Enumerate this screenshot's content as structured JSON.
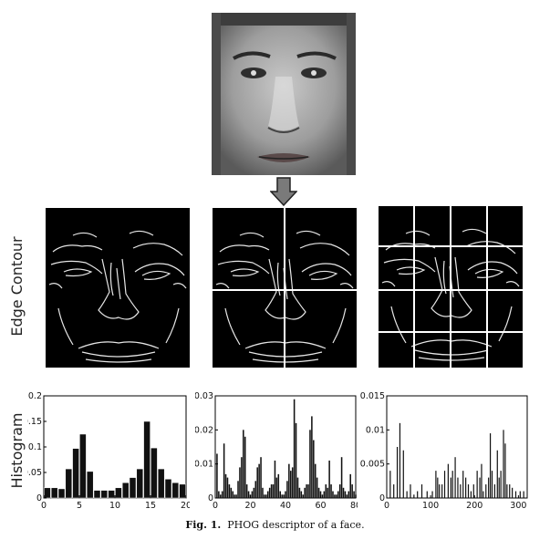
{
  "row_labels": {
    "edge": "Edge Contour",
    "histogram": "Histogram"
  },
  "caption": {
    "label": "Fig. 1.",
    "text": "PHOG descriptor of a face."
  },
  "chart_data": [
    {
      "type": "bar",
      "title": "",
      "xlabel": "",
      "ylabel": "Histogram",
      "xlim": [
        0,
        20
      ],
      "ylim": [
        0,
        0.2
      ],
      "xticks": [
        0,
        5,
        10,
        15,
        20
      ],
      "yticks": [
        0,
        0.05,
        0.1,
        0.15,
        0.2
      ],
      "ytick_labels": [
        "0",
        "0.05",
        "0.1",
        "0.15",
        "0.2"
      ],
      "x": [
        1,
        2,
        3,
        4,
        5,
        6,
        7,
        8,
        9,
        10,
        11,
        12,
        13,
        14,
        15,
        16,
        17,
        18,
        19,
        20
      ],
      "values": [
        0.02,
        0.02,
        0.018,
        0.057,
        0.097,
        0.125,
        0.052,
        0.015,
        0.015,
        0.015,
        0.02,
        0.03,
        0.04,
        0.057,
        0.15,
        0.098,
        0.057,
        0.037,
        0.03,
        0.027
      ]
    },
    {
      "type": "bar",
      "title": "",
      "xlabel": "",
      "ylabel": "",
      "xlim": [
        0,
        80
      ],
      "ylim": [
        0,
        0.03
      ],
      "xticks": [
        0,
        20,
        40,
        60,
        80
      ],
      "yticks": [
        0,
        0.01,
        0.02,
        0.03
      ],
      "ytick_labels": [
        "0",
        "0.01",
        "0.02",
        "0.03"
      ],
      "x": [
        1,
        2,
        3,
        4,
        5,
        6,
        7,
        8,
        9,
        10,
        11,
        12,
        13,
        14,
        15,
        16,
        17,
        18,
        19,
        20,
        21,
        22,
        23,
        24,
        25,
        26,
        27,
        28,
        29,
        30,
        31,
        32,
        33,
        34,
        35,
        36,
        37,
        38,
        39,
        40,
        41,
        42,
        43,
        44,
        45,
        46,
        47,
        48,
        49,
        50,
        51,
        52,
        53,
        54,
        55,
        56,
        57,
        58,
        59,
        60,
        61,
        62,
        63,
        64,
        65,
        66,
        67,
        68,
        69,
        70,
        71,
        72,
        73,
        74,
        75,
        76,
        77,
        78,
        79,
        80
      ],
      "values": [
        0.013,
        0.002,
        0.001,
        0.002,
        0.016,
        0.007,
        0.006,
        0.004,
        0.003,
        0.002,
        0.001,
        0.001,
        0.005,
        0.009,
        0.012,
        0.02,
        0.018,
        0.004,
        0.002,
        0.001,
        0.002,
        0.003,
        0.005,
        0.009,
        0.01,
        0.012,
        0.003,
        0.001,
        0.001,
        0.002,
        0.003,
        0.004,
        0.004,
        0.011,
        0.006,
        0.007,
        0.002,
        0.001,
        0.001,
        0.002,
        0.005,
        0.01,
        0.008,
        0.009,
        0.029,
        0.022,
        0.006,
        0.003,
        0.002,
        0.001,
        0.003,
        0.004,
        0.004,
        0.02,
        0.024,
        0.017,
        0.01,
        0.006,
        0.003,
        0.002,
        0.001,
        0.002,
        0.004,
        0.003,
        0.011,
        0.004,
        0.002,
        0.001,
        0.001,
        0.002,
        0.004,
        0.012,
        0.003,
        0.002,
        0.001,
        0.002,
        0.007,
        0.004,
        0.002,
        0.001
      ]
    },
    {
      "type": "bar",
      "title": "",
      "xlabel": "",
      "ylabel": "",
      "xlim": [
        0,
        320
      ],
      "ylim": [
        0,
        0.015
      ],
      "xticks": [
        0,
        100,
        200,
        300
      ],
      "yticks": [
        0,
        0.005,
        0.01,
        0.015
      ],
      "ytick_labels": [
        "0",
        "0.005",
        "0.01",
        "0.015"
      ],
      "peaks": [
        [
          8,
          0.004
        ],
        [
          16,
          0.002
        ],
        [
          24,
          0.0075
        ],
        [
          30,
          0.011
        ],
        [
          38,
          0.007
        ],
        [
          46,
          0.001
        ],
        [
          54,
          0.002
        ],
        [
          62,
          0.0005
        ],
        [
          70,
          0.001
        ],
        [
          80,
          0.002
        ],
        [
          92,
          0.001
        ],
        [
          104,
          0.001
        ],
        [
          112,
          0.004
        ],
        [
          116,
          0.003
        ],
        [
          120,
          0.002
        ],
        [
          126,
          0.002
        ],
        [
          132,
          0.004
        ],
        [
          140,
          0.005
        ],
        [
          146,
          0.003
        ],
        [
          150,
          0.004
        ],
        [
          156,
          0.006
        ],
        [
          162,
          0.003
        ],
        [
          168,
          0.002
        ],
        [
          174,
          0.004
        ],
        [
          180,
          0.003
        ],
        [
          186,
          0.002
        ],
        [
          192,
          0.001
        ],
        [
          198,
          0.002
        ],
        [
          206,
          0.004
        ],
        [
          212,
          0.003
        ],
        [
          216,
          0.005
        ],
        [
          220,
          0.001
        ],
        [
          226,
          0.002
        ],
        [
          232,
          0.003
        ],
        [
          236,
          0.0095
        ],
        [
          240,
          0.004
        ],
        [
          246,
          0.002
        ],
        [
          252,
          0.007
        ],
        [
          256,
          0.003
        ],
        [
          260,
          0.004
        ],
        [
          266,
          0.01
        ],
        [
          270,
          0.008
        ],
        [
          274,
          0.002
        ],
        [
          280,
          0.002
        ],
        [
          286,
          0.0015
        ],
        [
          294,
          0.001
        ],
        [
          304,
          0.001
        ],
        [
          312,
          0.001
        ]
      ]
    }
  ]
}
